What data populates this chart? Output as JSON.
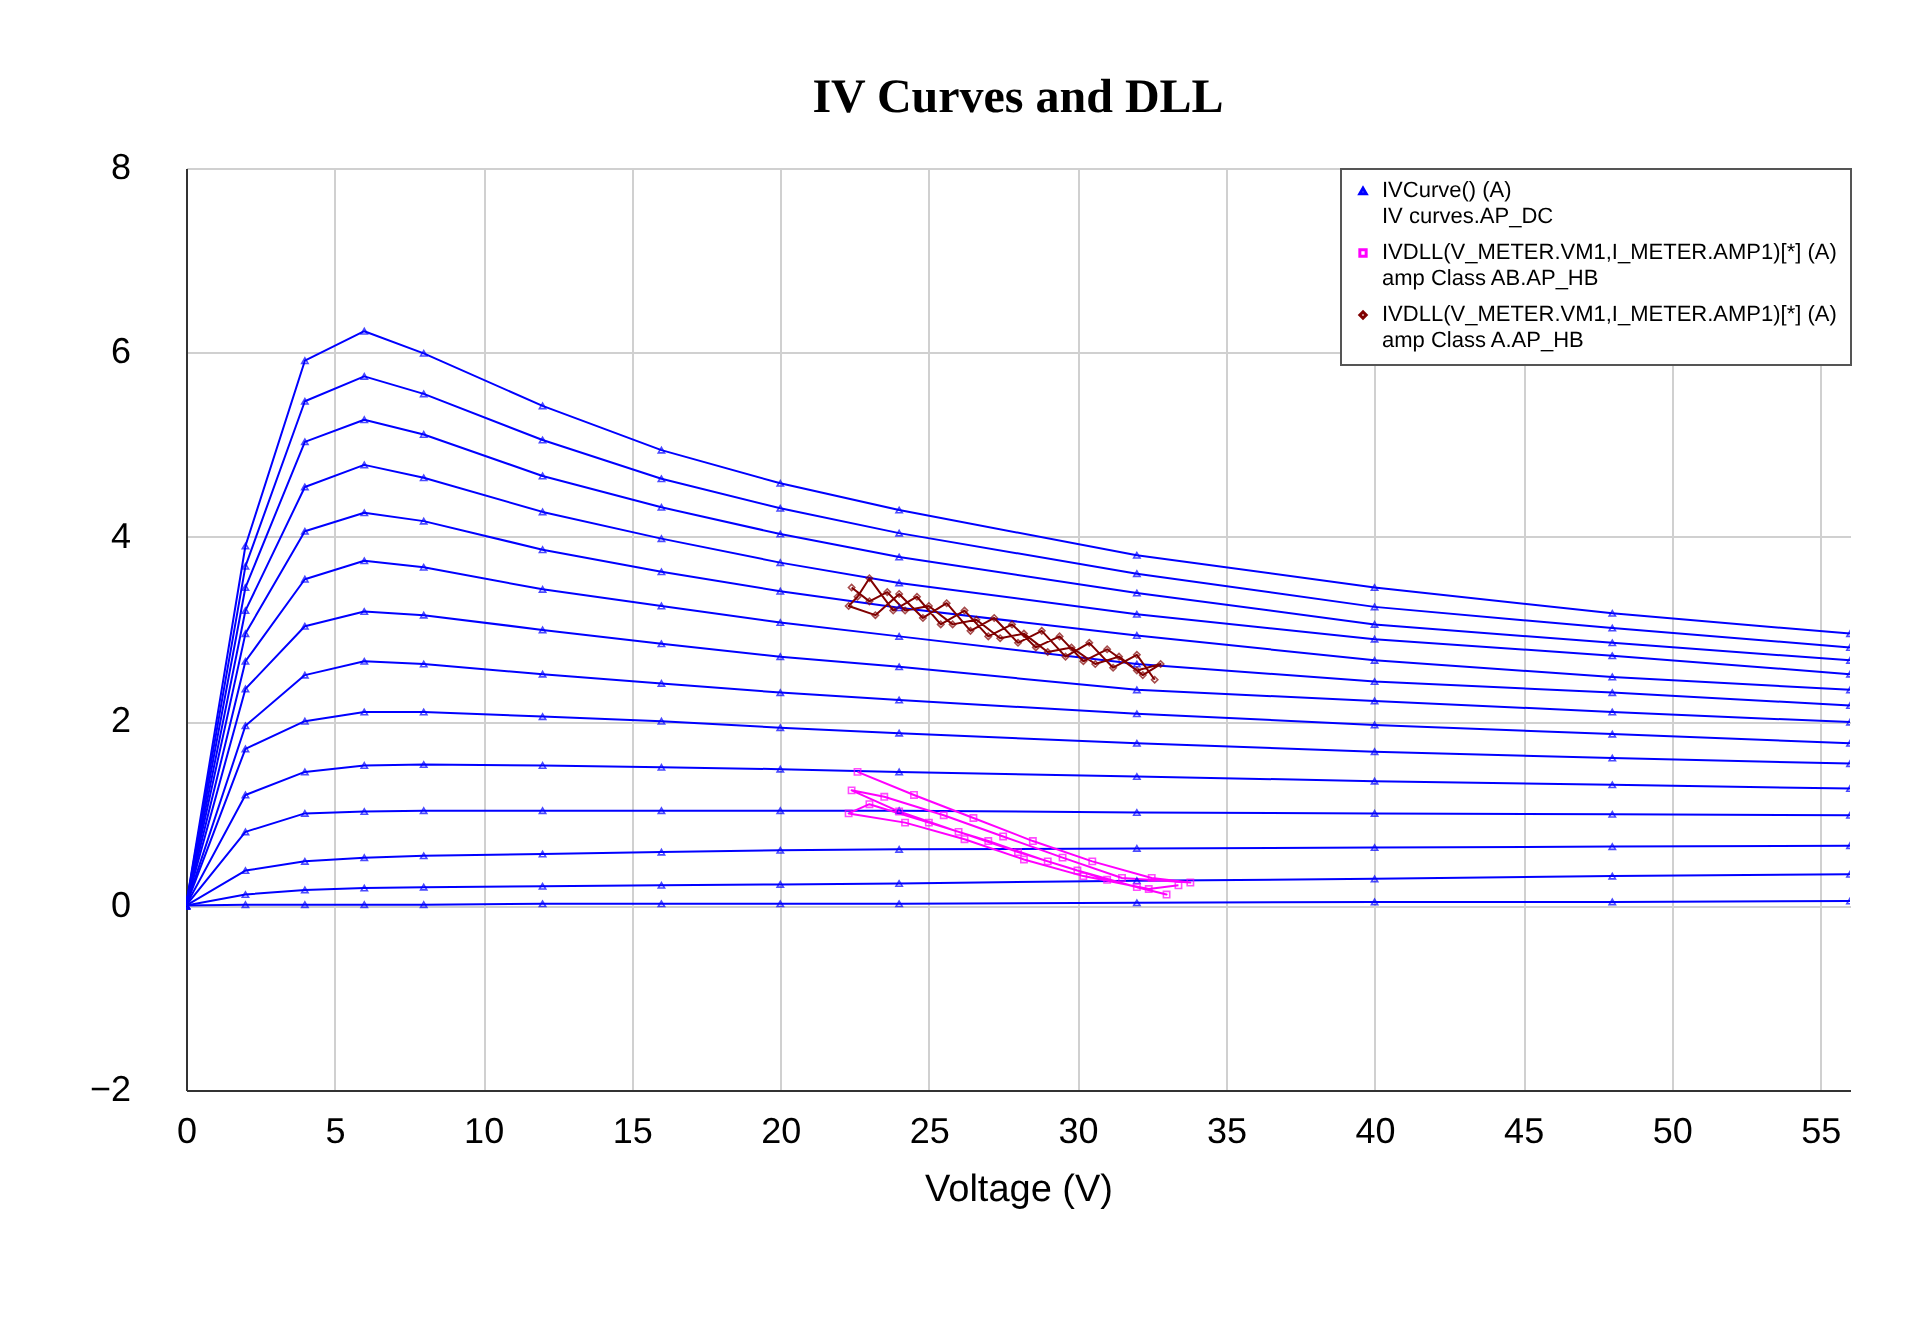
{
  "chart_data": {
    "type": "line",
    "title": "IV Curves and DLL",
    "xlabel": "Voltage (V)",
    "xlim": [
      0,
      56
    ],
    "xticks": [
      0,
      5,
      10,
      15,
      20,
      25,
      30,
      35,
      40,
      45,
      50,
      55
    ],
    "ylim": [
      -2,
      8
    ],
    "yticks": [
      -2,
      0,
      2,
      4,
      6,
      8
    ],
    "grid": true,
    "legend": "top right",
    "series": [
      {
        "name": "IVCurve() (A)\nIV curves.AP_DC",
        "color": "#0000ff",
        "marker": "triangle",
        "x": [
          0,
          2,
          4,
          6,
          8,
          12,
          16,
          20,
          24,
          32,
          40,
          48,
          56
        ],
        "values": [
          0,
          3.9,
          5.91,
          6.23,
          5.99,
          5.42,
          4.94,
          4.58,
          4.29,
          3.8,
          3.45,
          3.17,
          2.95
        ]
      },
      {
        "color": "#0000ff",
        "marker": "triangle",
        "x": [
          0,
          2,
          4,
          6,
          8,
          12,
          16,
          20,
          24,
          32,
          40,
          48,
          56
        ],
        "values": [
          0,
          3.68,
          5.47,
          5.74,
          5.55,
          5.05,
          4.63,
          4.31,
          4.04,
          3.6,
          3.24,
          3.01,
          2.8
        ]
      },
      {
        "color": "#0000ff",
        "marker": "triangle",
        "x": [
          0,
          2,
          4,
          6,
          8,
          12,
          16,
          20,
          24,
          32,
          40,
          48,
          56
        ],
        "values": [
          0,
          3.45,
          5.03,
          5.27,
          5.11,
          4.66,
          4.32,
          4.03,
          3.78,
          3.39,
          3.05,
          2.85,
          2.66
        ]
      },
      {
        "color": "#0000ff",
        "marker": "triangle",
        "x": [
          0,
          2,
          4,
          6,
          8,
          12,
          16,
          20,
          24,
          32,
          40,
          48,
          56
        ],
        "values": [
          0,
          3.2,
          4.54,
          4.78,
          4.64,
          4.27,
          3.98,
          3.72,
          3.5,
          3.16,
          2.89,
          2.71,
          2.51
        ]
      },
      {
        "color": "#0000ff",
        "marker": "triangle",
        "x": [
          0,
          2,
          4,
          6,
          8,
          12,
          16,
          20,
          24,
          32,
          40,
          48,
          56
        ],
        "values": [
          0,
          2.95,
          4.06,
          4.26,
          4.17,
          3.86,
          3.62,
          3.41,
          3.23,
          2.93,
          2.66,
          2.48,
          2.34
        ]
      },
      {
        "color": "#0000ff",
        "marker": "triangle",
        "x": [
          0,
          2,
          4,
          6,
          8,
          12,
          16,
          20,
          24,
          32,
          40,
          48,
          56
        ],
        "values": [
          0,
          2.65,
          3.54,
          3.74,
          3.67,
          3.43,
          3.25,
          3.07,
          2.92,
          2.62,
          2.43,
          2.31,
          2.17
        ]
      },
      {
        "color": "#0000ff",
        "marker": "triangle",
        "x": [
          0,
          2,
          4,
          6,
          8,
          12,
          16,
          20,
          24,
          32,
          40,
          48,
          56
        ],
        "values": [
          0,
          2.35,
          3.03,
          3.19,
          3.15,
          2.99,
          2.84,
          2.7,
          2.59,
          2.34,
          2.22,
          2.1,
          1.99
        ]
      },
      {
        "color": "#0000ff",
        "marker": "triangle",
        "x": [
          0,
          2,
          4,
          6,
          8,
          12,
          16,
          20,
          24,
          32,
          40,
          48,
          56
        ],
        "values": [
          0,
          1.95,
          2.5,
          2.65,
          2.62,
          2.51,
          2.41,
          2.31,
          2.23,
          2.08,
          1.96,
          1.86,
          1.76
        ]
      },
      {
        "color": "#0000ff",
        "marker": "triangle",
        "x": [
          0,
          2,
          4,
          6,
          8,
          12,
          16,
          20,
          24,
          32,
          40,
          48,
          56
        ],
        "values": [
          0,
          1.7,
          2.0,
          2.1,
          2.1,
          2.05,
          2.0,
          1.93,
          1.87,
          1.76,
          1.67,
          1.6,
          1.54
        ]
      },
      {
        "color": "#0000ff",
        "marker": "triangle",
        "x": [
          0,
          2,
          4,
          6,
          8,
          12,
          16,
          20,
          24,
          32,
          40,
          48,
          56
        ],
        "values": [
          0,
          1.2,
          1.45,
          1.52,
          1.53,
          1.52,
          1.5,
          1.48,
          1.45,
          1.4,
          1.35,
          1.31,
          1.27
        ]
      },
      {
        "color": "#0000ff",
        "marker": "triangle",
        "x": [
          0,
          2,
          4,
          6,
          8,
          12,
          16,
          20,
          24,
          32,
          40,
          48,
          56
        ],
        "values": [
          0,
          0.8,
          1.0,
          1.02,
          1.03,
          1.03,
          1.03,
          1.03,
          1.03,
          1.01,
          1.0,
          0.99,
          0.98
        ]
      },
      {
        "color": "#0000ff",
        "marker": "triangle",
        "x": [
          0,
          2,
          4,
          6,
          8,
          12,
          16,
          20,
          24,
          32,
          40,
          48,
          56
        ],
        "values": [
          0,
          0.38,
          0.48,
          0.52,
          0.54,
          0.56,
          0.58,
          0.6,
          0.61,
          0.62,
          0.63,
          0.64,
          0.65
        ]
      },
      {
        "color": "#0000ff",
        "marker": "triangle",
        "x": [
          0,
          2,
          4,
          6,
          8,
          12,
          16,
          20,
          24,
          32,
          40,
          48,
          56
        ],
        "values": [
          0,
          0.12,
          0.17,
          0.19,
          0.2,
          0.21,
          0.22,
          0.23,
          0.24,
          0.27,
          0.29,
          0.32,
          0.34
        ]
      },
      {
        "color": "#0000ff",
        "marker": "triangle",
        "x": [
          0,
          2,
          4,
          6,
          8,
          12,
          16,
          20,
          24,
          32,
          40,
          48,
          56
        ],
        "values": [
          0,
          0.01,
          0.01,
          0.01,
          0.01,
          0.02,
          0.02,
          0.02,
          0.02,
          0.03,
          0.04,
          0.04,
          0.05
        ]
      },
      {
        "name": "IVDLL(V_METER.VM1,I_METER.AMP1)[*] (A)\namp Class AB.AP_HB",
        "color": "#ff00ff",
        "marker": "square",
        "x": [
          22.6,
          24.5,
          26.5,
          28.5,
          30.5,
          32.5,
          33.8,
          31.5,
          29.5,
          27.5,
          25.5,
          23.5,
          22.4,
          24.0,
          26.0,
          28.0,
          30.0,
          32.0,
          33.0,
          31.0,
          29.0,
          27.0,
          25.0,
          23.0,
          22.3,
          24.2,
          26.2,
          28.2,
          30.2,
          32.4,
          33.4
        ],
        "values": [
          1.45,
          1.2,
          0.95,
          0.7,
          0.48,
          0.3,
          0.25,
          0.3,
          0.52,
          0.75,
          0.98,
          1.18,
          1.25,
          1.02,
          0.8,
          0.58,
          0.38,
          0.2,
          0.12,
          0.28,
          0.48,
          0.7,
          0.9,
          1.1,
          1.0,
          0.9,
          0.72,
          0.5,
          0.32,
          0.18,
          0.22
        ]
      },
      {
        "name": "IVDLL(V_METER.VM1,I_METER.AMP1)[*] (A)\namp Class A.AP_HB",
        "color": "#800000",
        "marker": "diamond",
        "x": [
          22.4,
          23.0,
          23.6,
          24.2,
          25.0,
          25.8,
          26.6,
          27.4,
          28.2,
          29.0,
          29.8,
          30.6,
          31.4,
          32.2,
          32.8,
          32.0,
          31.0,
          30.2,
          29.4,
          28.6,
          27.8,
          27.0,
          26.2,
          25.4,
          24.6,
          23.8,
          23.0,
          22.6,
          22.3,
          23.2,
          24.0,
          24.8,
          25.6,
          26.4,
          27.2,
          28.0,
          28.8,
          29.6,
          30.4,
          31.2,
          32.0,
          32.6
        ],
        "values": [
          3.45,
          3.3,
          3.4,
          3.2,
          3.25,
          3.05,
          3.1,
          2.9,
          2.95,
          2.75,
          2.8,
          2.62,
          2.7,
          2.5,
          2.62,
          2.55,
          2.78,
          2.65,
          2.92,
          2.8,
          3.05,
          2.92,
          3.2,
          3.05,
          3.35,
          3.2,
          3.55,
          3.35,
          3.25,
          3.15,
          3.38,
          3.12,
          3.28,
          2.98,
          3.12,
          2.85,
          2.98,
          2.7,
          2.85,
          2.58,
          2.72,
          2.45
        ]
      }
    ]
  }
}
